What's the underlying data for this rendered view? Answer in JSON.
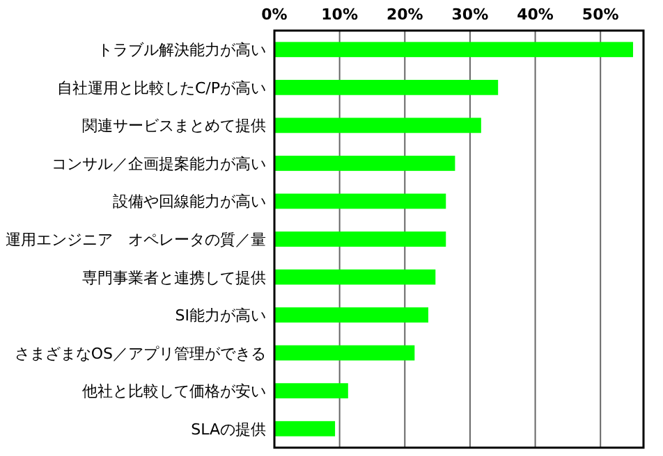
{
  "chart_data": {
    "type": "bar",
    "orientation": "horizontal",
    "categories": [
      "トラブル解決能力が高い",
      "自社運用と比較したC/Pが高い",
      "関連サービスまとめて提供",
      "コンサル／企画提案能力が高い",
      "設備や回線能力が高い",
      "運用エンジニア　オペレータの質／量",
      "専門事業者と連携して提供",
      "SI能力が高い",
      "さまざまなOS／アプリ管理ができる",
      "他社と比較して価格が安い",
      "SLAの提供"
    ],
    "values": [
      55,
      34.3,
      31.7,
      27.7,
      26.3,
      26.3,
      24.7,
      23.6,
      21.5,
      11.3,
      9.3
    ],
    "color": "#00ff00",
    "xlim": [
      0,
      56.6
    ],
    "xticks": [
      {
        "value": 0,
        "label": "0%"
      },
      {
        "value": 10,
        "label": "10%"
      },
      {
        "value": 20,
        "label": "20%"
      },
      {
        "value": 30,
        "label": "30%"
      },
      {
        "value": 40,
        "label": "40%"
      },
      {
        "value": 50,
        "label": "50%"
      }
    ],
    "grid": "x"
  }
}
